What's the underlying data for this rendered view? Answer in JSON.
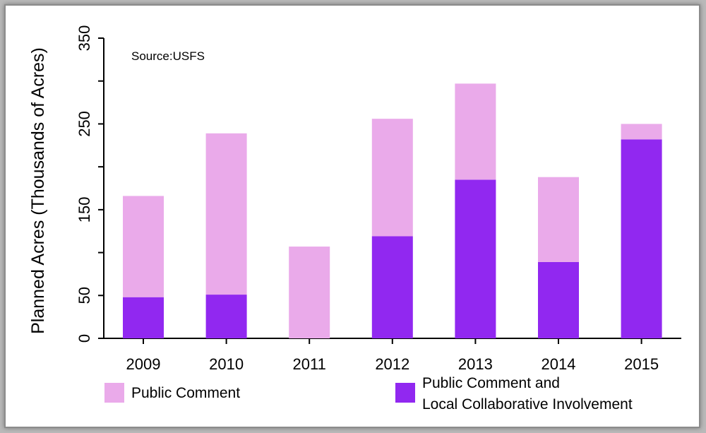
{
  "chart_data": {
    "type": "bar",
    "stacked": true,
    "annotation": "Source:USFS",
    "ylabel": "Planned Acres (Thousands of Acres)",
    "xlabel": "",
    "ylim": [
      0,
      350
    ],
    "yticks": [
      0,
      50,
      150,
      250,
      350
    ],
    "categories": [
      "2009",
      "2010",
      "2011",
      "2012",
      "2013",
      "2014",
      "2015"
    ],
    "series": [
      {
        "name": "Public Comment and Local Collaborative Involvement",
        "color": "#9128f0",
        "values": [
          48,
          51,
          0,
          119,
          185,
          89,
          232
        ]
      },
      {
        "name": "Public Comment",
        "color": "#eaaaea",
        "values": [
          118,
          188,
          107,
          137,
          112,
          99,
          18
        ]
      }
    ],
    "legend": [
      {
        "label": "Public Comment",
        "color": "#eaaaea"
      },
      {
        "label_lines": [
          "Public Comment and",
          "Local Collaborative Involvement"
        ],
        "color": "#9128f0"
      }
    ],
    "grid": false,
    "legend_position": "bottom"
  }
}
